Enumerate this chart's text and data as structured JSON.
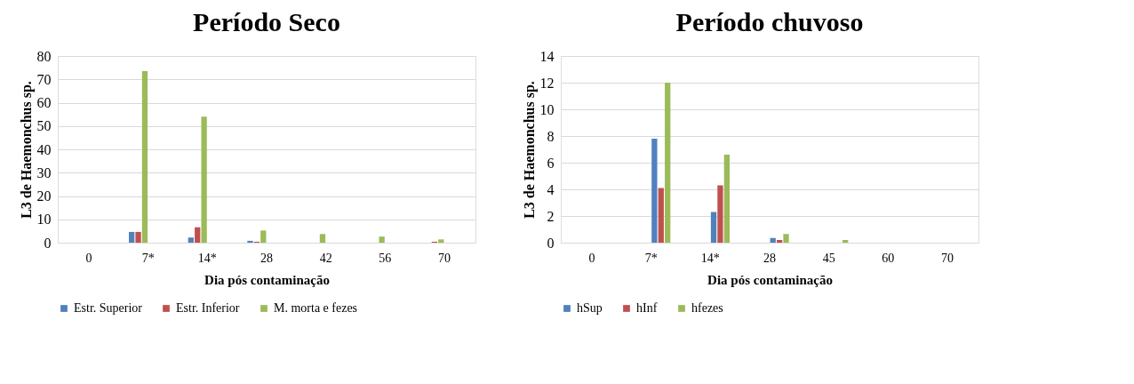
{
  "chart_data": [
    {
      "type": "bar",
      "title": "Período Seco",
      "xlabel": "Dia pós contaminação",
      "ylabel": "L3 de Haemonchus sp.",
      "categories": [
        "0",
        "7*",
        "14*",
        "28",
        "42",
        "56",
        "70"
      ],
      "ylim": [
        0,
        80
      ],
      "yticks": [
        0,
        10,
        20,
        30,
        40,
        50,
        60,
        70,
        80
      ],
      "grid": "y",
      "legend": "bottom",
      "series": [
        {
          "name": "Estr. Superior",
          "color": "#4f81bd",
          "values": [
            0,
            4.6,
            2.2,
            0.8,
            0,
            0,
            0
          ]
        },
        {
          "name": "Estr. Inferior",
          "color": "#c0504d",
          "values": [
            0,
            4.6,
            6.6,
            0.4,
            0,
            0,
            0.4
          ]
        },
        {
          "name": "M. morta e fezes",
          "color": "#9bbb59",
          "values": [
            0,
            73.5,
            54,
            5.2,
            3.7,
            2.6,
            1.4
          ]
        }
      ]
    },
    {
      "type": "bar",
      "title": "Período chuvoso",
      "xlabel": "Dia pós contaminação",
      "ylabel": "L3 de Haemonchus sp.",
      "categories": [
        "0",
        "7*",
        "14*",
        "28",
        "45",
        "60",
        "70"
      ],
      "ylim": [
        0,
        14
      ],
      "yticks": [
        0,
        2,
        4,
        6,
        8,
        10,
        12,
        14
      ],
      "grid": "y",
      "legend": "bottom",
      "series": [
        {
          "name": "hSup",
          "color": "#4f81bd",
          "values": [
            0,
            7.8,
            2.3,
            0.35,
            0,
            0,
            0
          ]
        },
        {
          "name": "hInf",
          "color": "#c0504d",
          "values": [
            0,
            4.1,
            4.3,
            0.2,
            0,
            0,
            0
          ]
        },
        {
          "name": "hfezes",
          "color": "#9bbb59",
          "values": [
            0,
            12.0,
            6.6,
            0.65,
            0.2,
            0,
            0
          ]
        }
      ]
    }
  ]
}
